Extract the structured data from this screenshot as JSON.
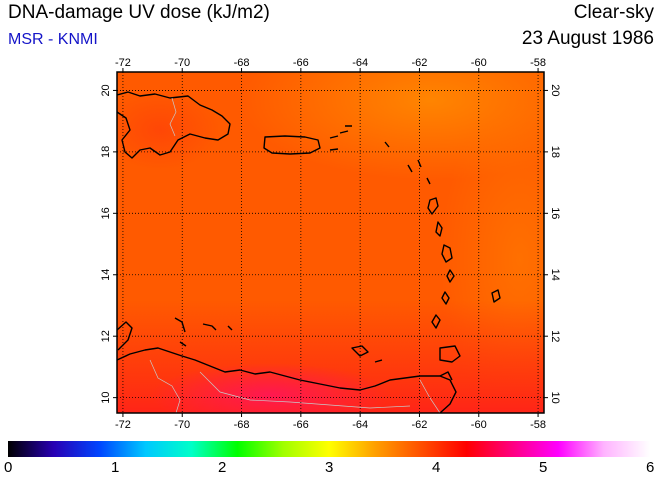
{
  "header": {
    "title": "DNA-damage UV dose (kJ/m2)",
    "source": "MSR - KNMI",
    "condition": "Clear-sky",
    "date": "23 August 1986"
  },
  "map": {
    "lon_ticks": [
      "-72",
      "-70",
      "-68",
      "-66",
      "-64",
      "-62",
      "-60",
      "-58"
    ],
    "lat_ticks": [
      "10",
      "12",
      "14",
      "16",
      "18",
      "20"
    ],
    "field_colors": {
      "base": "#ff5a00",
      "high_north": "#ff8c00",
      "high_east": "#ff7500",
      "low_south": "#ff2a12",
      "peak_south": "#ff1850",
      "land_outline": "#000000",
      "border_lines": "#c8c8c8"
    },
    "grid": "dotted"
  },
  "colorbar": {
    "min": 0,
    "max": 6,
    "labels": [
      "0",
      "1",
      "2",
      "3",
      "4",
      "5",
      "6"
    ],
    "colors": [
      "#000000",
      "#2800b4",
      "#0046ff",
      "#00c8ff",
      "#00ffc8",
      "#00ff00",
      "#a0ff00",
      "#ffff00",
      "#ffa000",
      "#ff5000",
      "#ff0000",
      "#ff0080",
      "#ff00ff",
      "#ffb4ff",
      "#ffffff"
    ]
  }
}
